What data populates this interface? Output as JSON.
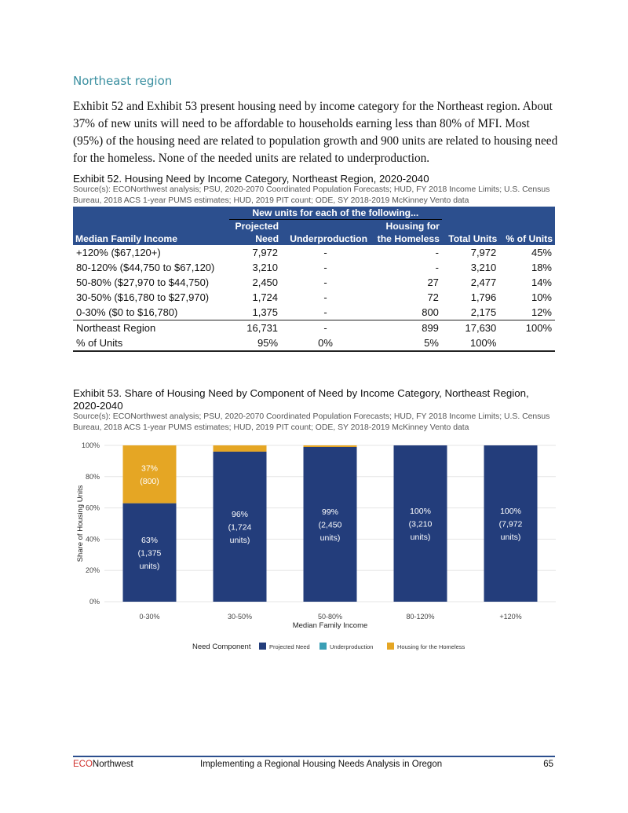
{
  "section_title": "Northeast region",
  "paragraph": "Exhibit 52 and Exhibit 53 present housing need by income category for the Northeast region. About 37% of new units will need to be affordable to households earning less than 80% of MFI. Most (95%) of the housing need are related to population growth and 900 units are related to housing need for the homeless. None of the needed units are related to underproduction.",
  "exhibit52": {
    "title": "Exhibit 52. Housing Need by Income Category, Northeast Region, 2020-2040",
    "source": "Source(s): ECONorthwest analysis; PSU, 2020-2070 Coordinated Population Forecasts; HUD, FY 2018 Income Limits; U.S. Census Bureau, 2018 ACS 1-year PUMS estimates; HUD, 2019 PIT count; ODE, SY 2018-2019 McKinney Vento data",
    "group_header": "New units for each of the following...",
    "headers": [
      "Median Family Income",
      "Projected Need",
      "Underproduction",
      "Housing for the Homeless",
      "Total Units",
      "% of Units"
    ],
    "header_top": [
      "",
      "Projected",
      "",
      "Housing for",
      "",
      ""
    ],
    "header_bottom": [
      "Median Family Income",
      "Need",
      "Underproduction",
      "the Homeless",
      "Total Units",
      "% of Units"
    ],
    "rows": [
      [
        "+120% ($67,120+)",
        "7,972",
        "-",
        "-",
        "7,972",
        "45%"
      ],
      [
        "80-120% ($44,750 to $67,120)",
        "3,210",
        "-",
        "-",
        "3,210",
        "18%"
      ],
      [
        "50-80% ($27,970 to $44,750)",
        "2,450",
        "-",
        "27",
        "2,477",
        "14%"
      ],
      [
        "30-50% ($16,780 to $27,970)",
        "1,724",
        "-",
        "72",
        "1,796",
        "10%"
      ],
      [
        "0-30% ($0 to $16,780)",
        "1,375",
        "-",
        "800",
        "2,175",
        "12%"
      ],
      [
        "Northeast Region",
        "16,731",
        "-",
        "899",
        "17,630",
        "100%"
      ],
      [
        "% of Units",
        "95%",
        "0%",
        "5%",
        "100%",
        ""
      ]
    ]
  },
  "exhibit53": {
    "title": "Exhibit 53. Share of Housing Need by Component of Need by Income Category, Northeast Region, 2020-2040",
    "title_line1": "Exhibit 53. Share of Housing Need by Component of Need by Income Category, Northeast Region,",
    "title_line2": "2020-2040",
    "source": "Source(s): ECONorthwest analysis; PSU, 2020-2070 Coordinated Population Forecasts; HUD, FY 2018 Income Limits; U.S. Census Bureau, 2018 ACS 1-year PUMS estimates; HUD, 2019 PIT count; ODE, SY 2018-2019 McKinney Vento data"
  },
  "chart_data": {
    "type": "bar",
    "stacked": true,
    "categories": [
      "0-30%",
      "30-50%",
      "50-80%",
      "80-120%",
      "+120%"
    ],
    "xlabel": "Median Family Income",
    "ylabel": "Share of Housing Units",
    "ylim": [
      0,
      100
    ],
    "yticks": [
      "0%",
      "20%",
      "40%",
      "60%",
      "80%",
      "100%"
    ],
    "grid": true,
    "legend_title": "Need Component",
    "legend_position": "bottom",
    "series": [
      {
        "name": "Projected Need",
        "color": "#233d7b",
        "values": [
          63,
          96,
          99,
          100,
          100
        ],
        "labels": [
          [
            "63%",
            "(1,375",
            "units)"
          ],
          [
            "96%",
            "(1,724",
            "units)"
          ],
          [
            "99%",
            "(2,450",
            "units)"
          ],
          [
            "100%",
            "(3,210",
            "units)"
          ],
          [
            "100%",
            "(7,972",
            "units)"
          ]
        ]
      },
      {
        "name": "Underproduction",
        "color": "#3a9fb5",
        "values": [
          0,
          0,
          0,
          0,
          0
        ]
      },
      {
        "name": "Housing for the Homeless",
        "color": "#e5a624",
        "values": [
          37,
          4,
          1,
          0,
          0
        ],
        "labels": [
          [
            "37%",
            "(800)"
          ],
          null,
          null,
          null,
          null
        ]
      }
    ]
  },
  "footer": {
    "brand_eco": "ECO",
    "brand_rest": "Northwest",
    "title": "Implementing a Regional Housing Needs Analysis in Oregon",
    "page": "65"
  }
}
